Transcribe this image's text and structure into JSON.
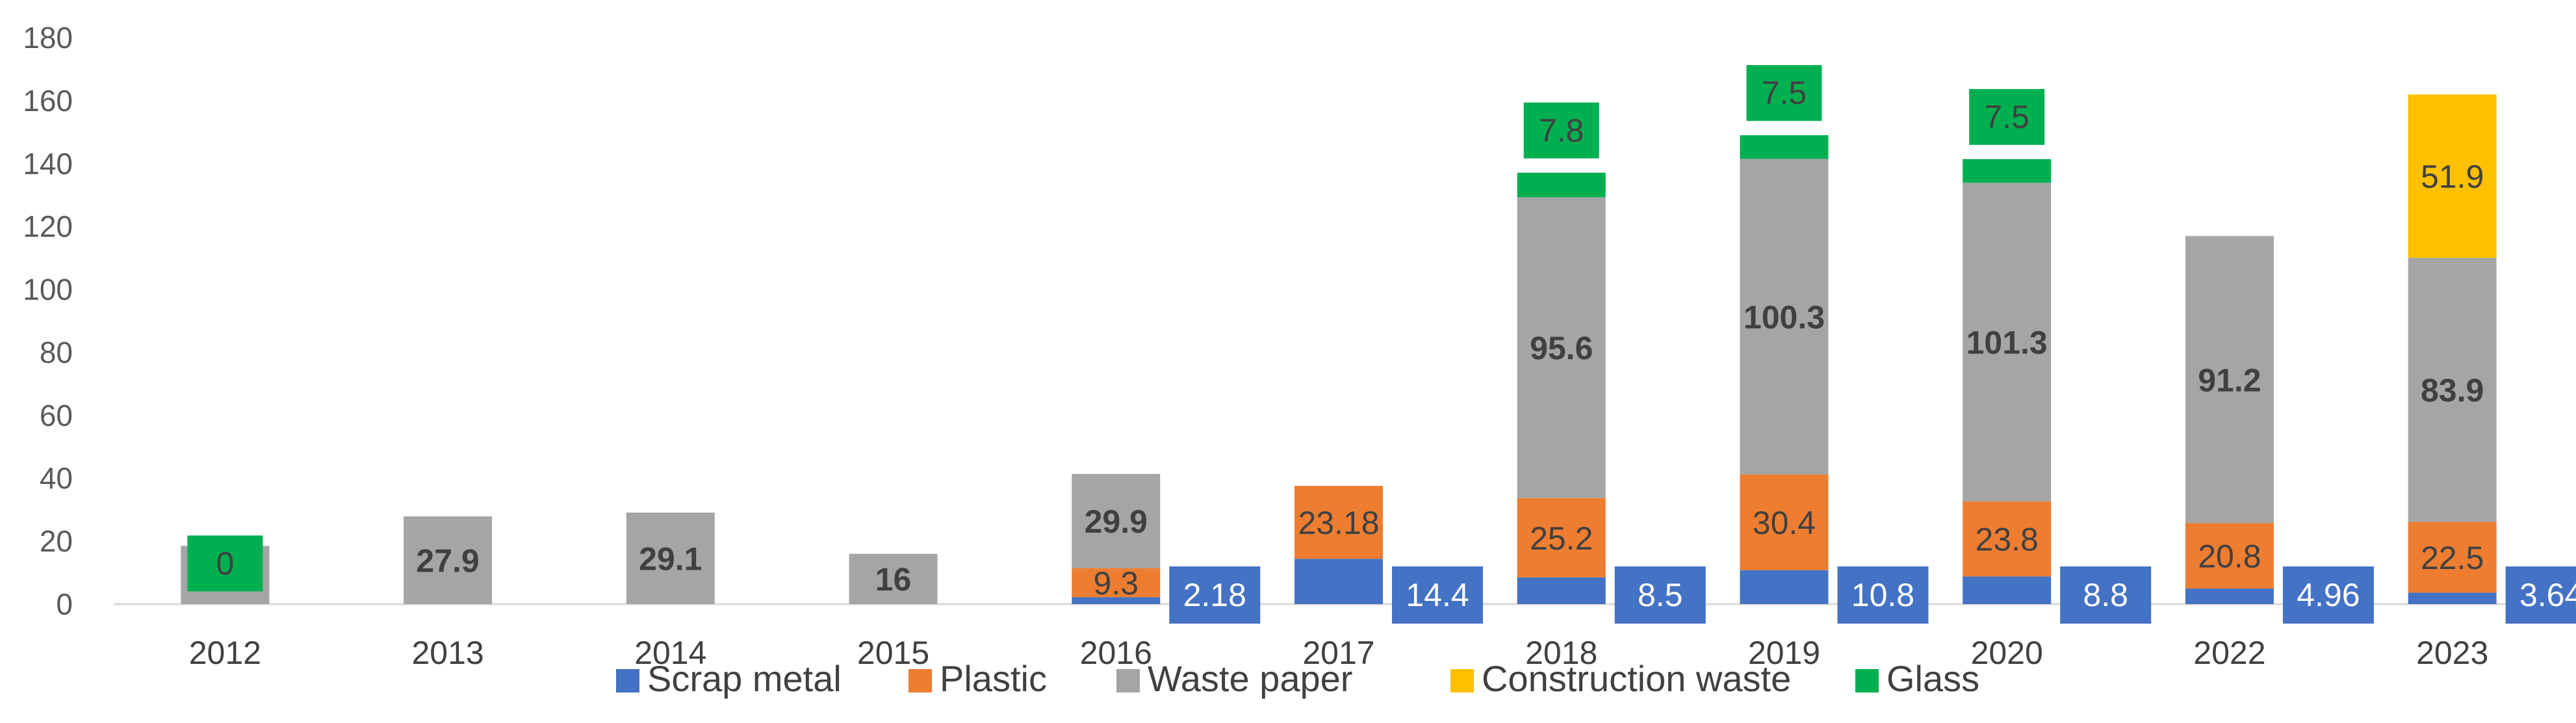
{
  "chart_data": {
    "type": "bar",
    "stacked": true,
    "categories": [
      "2012",
      "2013",
      "2014",
      "2015",
      "2016",
      "2017",
      "2018",
      "2019",
      "2020",
      "2022",
      "2023"
    ],
    "ylim": [
      0,
      180
    ],
    "yticks": [
      0,
      20,
      40,
      60,
      80,
      100,
      120,
      140,
      160,
      180
    ],
    "grid": false,
    "legend_position": "bottom",
    "series": [
      {
        "name": "Scrap metal",
        "color": "#4472C4",
        "values": [
          0,
          0,
          0,
          0,
          2.18,
          14.4,
          8.5,
          10.8,
          8.8,
          4.96,
          3.64
        ],
        "labels": [
          "",
          "",
          "",
          "",
          "2.18",
          "14.4",
          "8.5",
          "10.8",
          "8.8",
          "4.96",
          "3.64"
        ]
      },
      {
        "name": "Plastic",
        "color": "#ED7D31",
        "values": [
          0,
          0,
          0,
          0,
          9.3,
          23.18,
          25.2,
          30.4,
          23.8,
          20.8,
          22.5
        ],
        "labels": [
          "",
          "",
          "",
          "",
          "9.3",
          "23.18",
          "25.2",
          "30.4",
          "23.8",
          "20.8",
          "22.5"
        ]
      },
      {
        "name": "Waste paper",
        "color": "#A5A5A5",
        "values": [
          18.5,
          27.9,
          29.1,
          16,
          29.9,
          0,
          95.6,
          100.3,
          101.3,
          91.2,
          83.9
        ],
        "labels": [
          "18.5",
          "27.9",
          "29.1",
          "16",
          "29.9",
          "",
          "95.6",
          "100.3",
          "101.3",
          "91.2",
          "83.9"
        ]
      },
      {
        "name": "Construction waste",
        "color": "#FFC000",
        "values": [
          0,
          0,
          0,
          0,
          0,
          0,
          0,
          0,
          0,
          0,
          51.9
        ],
        "labels": [
          "",
          "",
          "",
          "",
          "",
          "",
          "",
          "",
          "",
          "",
          "51.9"
        ]
      },
      {
        "name": "Glass",
        "color": "#00B050",
        "values": [
          0,
          0,
          0,
          0,
          0,
          0,
          7.8,
          7.5,
          7.5,
          0,
          0
        ],
        "labels": [
          "0",
          "",
          "",
          "",
          "",
          "",
          "7.8",
          "7.5",
          "7.5",
          "",
          ""
        ]
      }
    ]
  }
}
